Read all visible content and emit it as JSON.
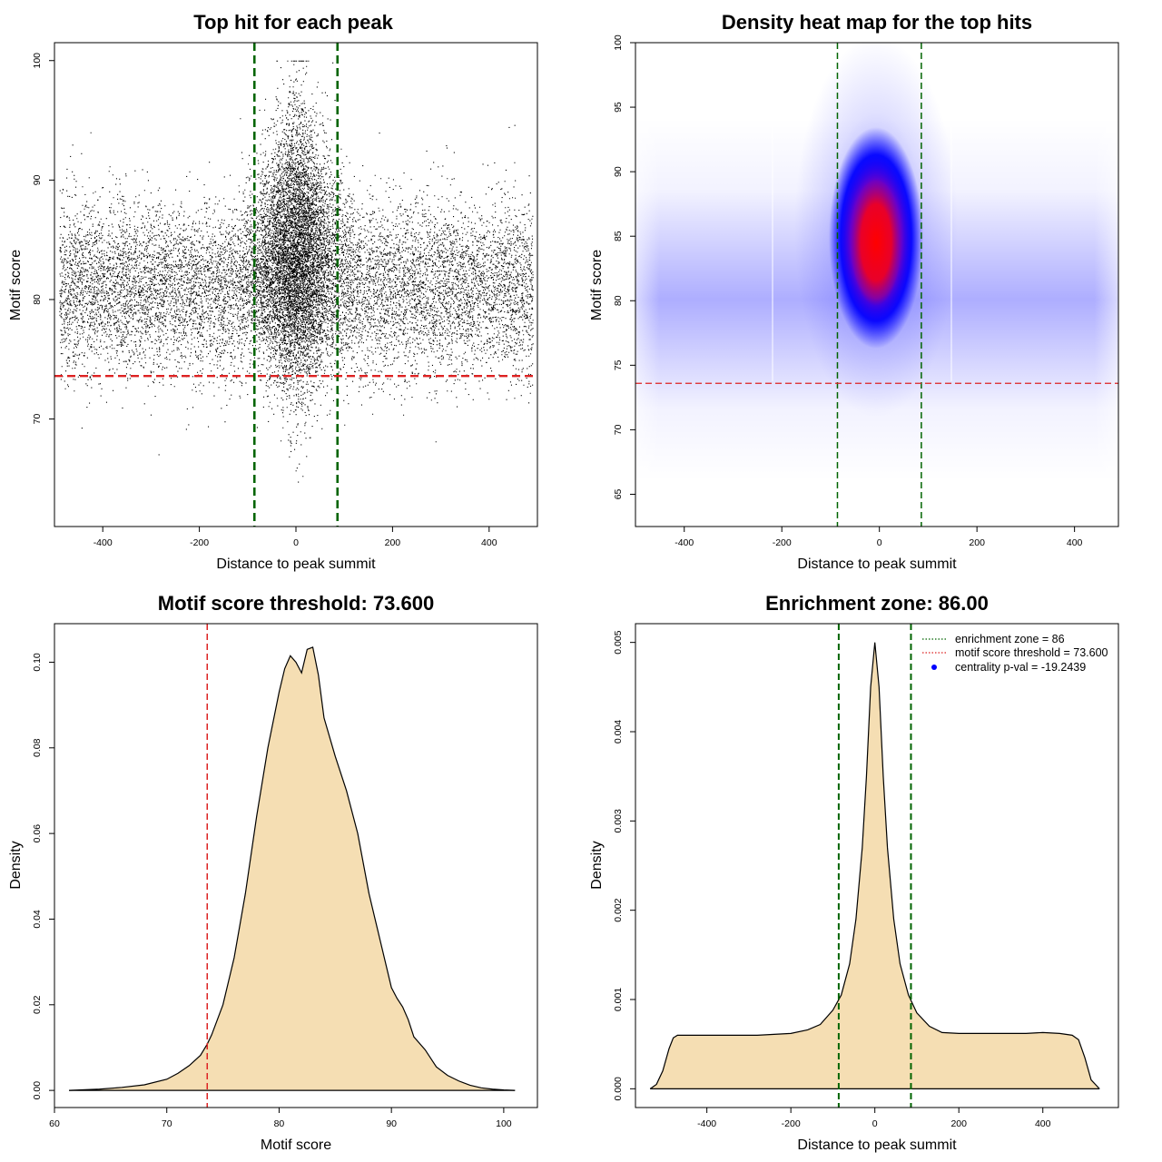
{
  "colors": {
    "green_line": "#006400",
    "red_line": "#dd2222",
    "fill": "#f5deb3",
    "point": "#000000",
    "heat_low": "#ffffff",
    "heat_mid": "#0000ff",
    "heat_high": "#ff0000"
  },
  "chart_data": [
    {
      "id": "scatter",
      "type": "scatter",
      "title": "Top hit for each peak",
      "xlabel": "Distance to peak summit",
      "ylabel": "Motif score",
      "xlim": [
        -500,
        500
      ],
      "ylim": [
        61,
        101.5
      ],
      "xticks": [
        -400,
        -200,
        0,
        200,
        400
      ],
      "yticks": [
        70,
        80,
        90,
        100
      ],
      "vlines": [
        -86,
        86
      ],
      "hline": 73.6,
      "background": {
        "x_range": [
          -490,
          490
        ],
        "score_mean": 81,
        "score_sd": 3.6,
        "min_score": 62,
        "max_score": 96
      },
      "central_peak": {
        "x_sd": 45,
        "score_mean": 84,
        "score_sd": 5,
        "max_score": 100
      }
    },
    {
      "id": "heatmap",
      "type": "heatmap",
      "title": "Density heat map for the top hits",
      "xlabel": "Distance to peak summit",
      "ylabel": "Motif score",
      "xlim": [
        -500,
        490
      ],
      "ylim": [
        62.5,
        100
      ],
      "xticks": [
        -400,
        -200,
        0,
        200,
        400
      ],
      "yticks": [
        65,
        70,
        75,
        80,
        85,
        90,
        95,
        100
      ],
      "vlines": [
        -86,
        86
      ],
      "hline": 73.6,
      "palette": [
        "white",
        "blue",
        "red"
      ]
    },
    {
      "id": "score-density",
      "type": "area",
      "title": "Motif score threshold: 73.600",
      "xlabel": "Motif score",
      "ylabel": "Density",
      "xlim": [
        60,
        103
      ],
      "ylim": [
        -0.004,
        0.109
      ],
      "xticks": [
        60,
        70,
        80,
        90,
        100
      ],
      "yticks": [
        0.0,
        0.02,
        0.04,
        0.06,
        0.08,
        0.1
      ],
      "ytick_labels": [
        "0.00",
        "0.02",
        "0.04",
        "0.06",
        "0.08",
        "0.10"
      ],
      "vline": 73.6,
      "x": [
        61.3,
        64,
        66,
        68,
        70,
        71,
        72,
        73,
        73.6,
        74,
        75,
        76,
        77,
        78,
        79,
        80,
        80.5,
        81,
        81.5,
        82,
        82.5,
        83,
        83.5,
        84,
        85,
        86,
        87,
        88,
        89,
        90,
        90.5,
        91,
        91.5,
        92,
        93,
        94,
        95,
        96,
        97,
        98,
        99,
        100,
        101
      ],
      "y": [
        0.0,
        0.0003,
        0.0007,
        0.0013,
        0.0026,
        0.004,
        0.0058,
        0.0082,
        0.0108,
        0.013,
        0.02,
        0.031,
        0.046,
        0.064,
        0.08,
        0.093,
        0.0985,
        0.1015,
        0.1,
        0.0975,
        0.103,
        0.1035,
        0.097,
        0.087,
        0.078,
        0.07,
        0.06,
        0.046,
        0.035,
        0.024,
        0.0215,
        0.0195,
        0.0165,
        0.0125,
        0.0095,
        0.0055,
        0.0035,
        0.0022,
        0.0012,
        0.0006,
        0.0003,
        0.0001,
        0.0
      ]
    },
    {
      "id": "distance-density",
      "type": "area",
      "title": "Enrichment zone: 86.00",
      "xlabel": "Distance to peak summit",
      "ylabel": "Density",
      "xlim": [
        -570,
        580
      ],
      "ylim": [
        -0.00021,
        0.00521
      ],
      "xticks": [
        -400,
        -200,
        0,
        200,
        400
      ],
      "yticks": [
        0.0,
        0.001,
        0.002,
        0.003,
        0.004,
        0.005
      ],
      "ytick_labels": [
        "0.000",
        "0.001",
        "0.002",
        "0.003",
        "0.004",
        "0.005"
      ],
      "vlines": [
        -86,
        86
      ],
      "x": [
        -535,
        -520,
        -505,
        -490,
        -480,
        -470,
        -440,
        -400,
        -360,
        -320,
        -280,
        -240,
        -200,
        -160,
        -130,
        -100,
        -80,
        -60,
        -45,
        -30,
        -20,
        -10,
        0,
        10,
        20,
        30,
        45,
        60,
        80,
        100,
        130,
        160,
        200,
        240,
        280,
        320,
        360,
        400,
        440,
        470,
        485,
        500,
        515,
        535
      ],
      "y": [
        0.0,
        5e-05,
        0.0002,
        0.00045,
        0.00057,
        0.0006,
        0.0006,
        0.0006,
        0.0006,
        0.0006,
        0.0006,
        0.00061,
        0.00062,
        0.00066,
        0.00072,
        0.00088,
        0.00105,
        0.0014,
        0.0019,
        0.0027,
        0.0035,
        0.0045,
        0.005,
        0.0045,
        0.0035,
        0.0027,
        0.0019,
        0.0014,
        0.00105,
        0.00085,
        0.0007,
        0.00063,
        0.00062,
        0.00062,
        0.00062,
        0.00062,
        0.00062,
        0.00063,
        0.00062,
        0.0006,
        0.00055,
        0.00035,
        0.0001,
        0.0
      ],
      "legend": [
        {
          "label": "enrichment zone = 86",
          "style": "dotted",
          "color": "#006400"
        },
        {
          "label": "motif score threshold = 73.600",
          "style": "dotted",
          "color": "#dd2222"
        },
        {
          "label": "centrality p-val = -19.2439",
          "style": "point",
          "color": "#0000ff"
        }
      ]
    }
  ]
}
